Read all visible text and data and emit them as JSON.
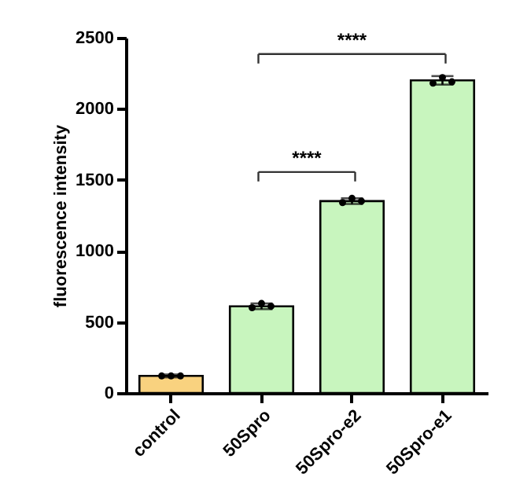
{
  "chart_data": {
    "type": "bar",
    "ylabel": "fluorescence intensity",
    "categories": [
      "control",
      "50Spro",
      "50Spro-e2",
      "50Spro-e1"
    ],
    "series": [
      {
        "type": "bar",
        "values": [
          120,
          610,
          1350,
          2200
        ],
        "colors": [
          "#f9d27f",
          "#c8f5be",
          "#c8f5be",
          "#c8f5be"
        ],
        "errors": [
          10,
          20,
          20,
          30
        ]
      },
      {
        "type": "scatter",
        "color": "#000000",
        "x": [
          "control",
          "control",
          "control",
          "50Spro",
          "50Spro",
          "50Spro",
          "50Spro-e2",
          "50Spro-e2",
          "50Spro-e2",
          "50Spro-e1",
          "50Spro-e1",
          "50Spro-e1"
        ],
        "values": [
          120,
          120,
          120,
          600,
          630,
          610,
          1340,
          1370,
          1350,
          2180,
          2220,
          2190
        ]
      }
    ],
    "ylim": [
      0,
      2500
    ],
    "yticks": [
      0,
      500,
      1000,
      1500,
      2000,
      2500
    ],
    "annotations": [
      "****",
      "****"
    ],
    "grid": false,
    "marker": "circle"
  }
}
